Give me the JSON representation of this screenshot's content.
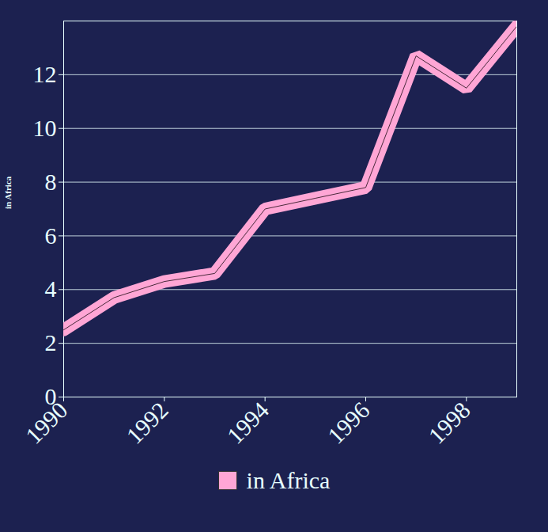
{
  "chart_data": {
    "type": "line",
    "x": [
      1990,
      1991,
      1992,
      1993,
      1994,
      1995,
      1996,
      1997,
      1998,
      1999
    ],
    "series": [
      {
        "name": "in Africa",
        "color": "#ffa6d5",
        "values": [
          2.5,
          3.7,
          4.3,
          4.6,
          7.0,
          7.4,
          7.8,
          12.7,
          11.5,
          13.8
        ]
      }
    ],
    "y_label": "in Africa",
    "xlim": [
      1990,
      1999
    ],
    "xticks": [
      1990,
      1992,
      1994,
      1996,
      1998
    ],
    "ylim": [
      0,
      14
    ],
    "yticks": [
      0,
      2,
      4,
      6,
      8,
      10,
      12
    ],
    "grid": true,
    "legend": "bottom"
  }
}
